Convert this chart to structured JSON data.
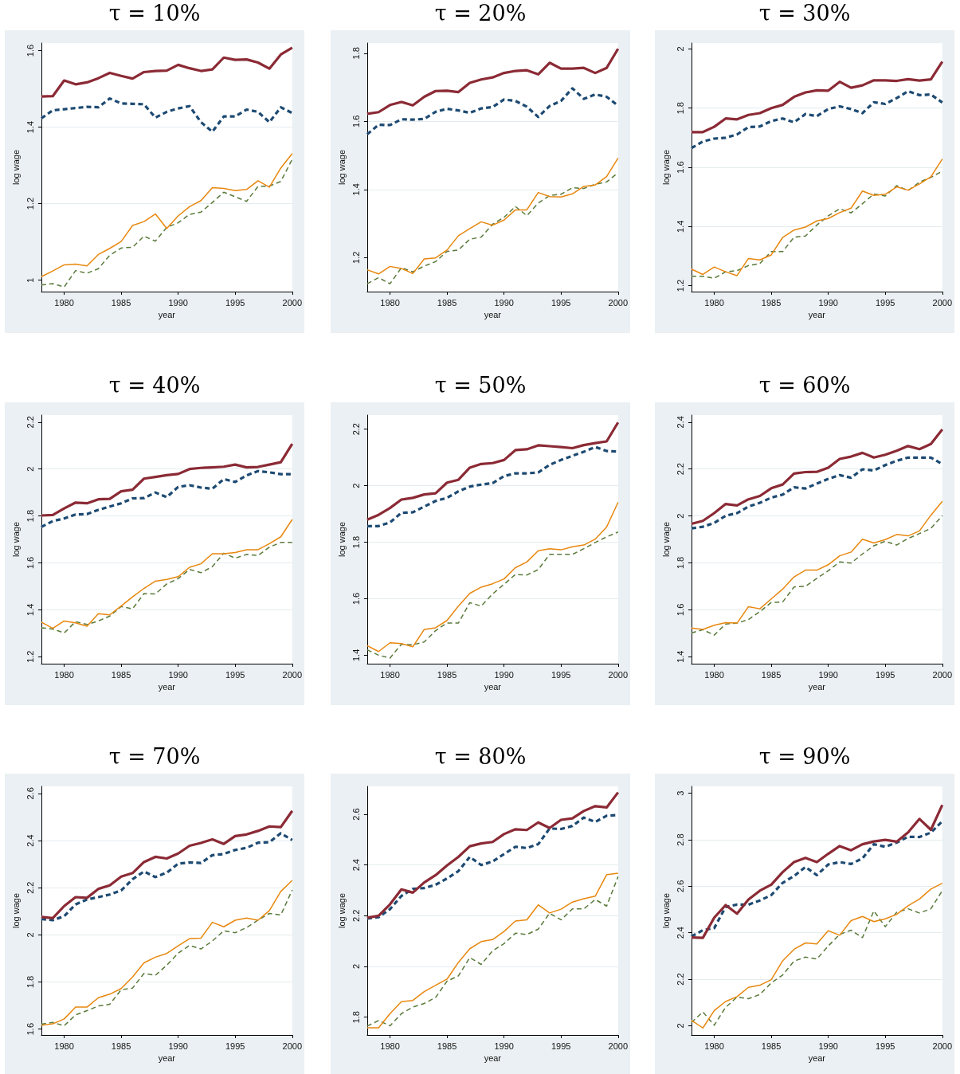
{
  "chart_data": [
    {
      "type": "line",
      "title": "τ = 10%",
      "xlabel": "year",
      "ylabel": "log wage",
      "grid": "y",
      "marker": "none",
      "x": [
        1978,
        1979,
        1980,
        1981,
        1982,
        1983,
        1984,
        1985,
        1986,
        1987,
        1988,
        1989,
        1990,
        1991,
        1992,
        1993,
        1994,
        1995,
        1996,
        1997,
        1998,
        1999,
        2000
      ],
      "xlim": [
        1978,
        2000
      ],
      "xticks": [
        1980,
        1985,
        1990,
        1995,
        2000
      ],
      "ylim": [
        0.97,
        1.62
      ],
      "yticks": [
        {
          "value": 1,
          "label": "1"
        },
        1.2,
        1.4,
        1.6
      ],
      "series": [
        {
          "color": "#8b2a35",
          "line_style": "solid",
          "values": [
            1.48,
            1.481,
            1.522,
            1.512,
            1.517,
            1.528,
            1.542,
            1.534,
            1.527,
            1.544,
            1.547,
            1.548,
            1.563,
            1.554,
            1.547,
            1.551,
            1.582,
            1.576,
            1.577,
            1.569,
            1.553,
            1.59,
            1.608
          ]
        },
        {
          "color": "#1d4a72",
          "line_style": "dashed",
          "values": [
            1.423,
            1.444,
            1.447,
            1.45,
            1.453,
            1.452,
            1.475,
            1.462,
            1.461,
            1.46,
            1.425,
            1.44,
            1.449,
            1.455,
            1.413,
            1.388,
            1.428,
            1.428,
            1.446,
            1.44,
            1.413,
            1.452,
            1.437
          ]
        },
        {
          "color": "#e8870e",
          "line_style": "solid",
          "values": [
            1.009,
            1.024,
            1.04,
            1.042,
            1.037,
            1.067,
            1.083,
            1.101,
            1.143,
            1.153,
            1.173,
            1.135,
            1.168,
            1.192,
            1.208,
            1.242,
            1.24,
            1.234,
            1.237,
            1.26,
            1.243,
            1.293,
            1.331
          ]
        },
        {
          "color": "#5a7a3a",
          "line_style": "dashed",
          "values": [
            0.987,
            0.991,
            0.982,
            1.025,
            1.018,
            1.03,
            1.065,
            1.084,
            1.086,
            1.115,
            1.102,
            1.138,
            1.15,
            1.172,
            1.178,
            1.203,
            1.23,
            1.218,
            1.206,
            1.245,
            1.246,
            1.258,
            1.316
          ]
        }
      ]
    },
    {
      "type": "line",
      "title": "τ = 20%",
      "xlabel": "year",
      "ylabel": "log wage",
      "grid": "y",
      "marker": "none",
      "x": [
        1978,
        1979,
        1980,
        1981,
        1982,
        1983,
        1984,
        1985,
        1986,
        1987,
        1988,
        1989,
        1990,
        1991,
        1992,
        1993,
        1994,
        1995,
        1996,
        1997,
        1998,
        1999,
        2000
      ],
      "xlim": [
        1978,
        2000
      ],
      "xticks": [
        1980,
        1985,
        1990,
        1995,
        2000
      ],
      "ylim": [
        1.1,
        1.83
      ],
      "yticks": [
        1.2,
        1.4,
        1.6,
        1.8
      ],
      "series": [
        {
          "color": "#8b2a35",
          "line_style": "solid",
          "values": [
            1.622,
            1.627,
            1.648,
            1.657,
            1.647,
            1.672,
            1.689,
            1.69,
            1.686,
            1.713,
            1.723,
            1.729,
            1.742,
            1.748,
            1.75,
            1.738,
            1.772,
            1.755,
            1.755,
            1.757,
            1.742,
            1.757,
            1.813
          ]
        },
        {
          "color": "#1d4a72",
          "line_style": "dashed",
          "values": [
            1.562,
            1.59,
            1.589,
            1.606,
            1.605,
            1.607,
            1.628,
            1.637,
            1.632,
            1.625,
            1.638,
            1.642,
            1.664,
            1.66,
            1.643,
            1.613,
            1.645,
            1.66,
            1.697,
            1.666,
            1.679,
            1.672,
            1.646
          ]
        },
        {
          "color": "#e8870e",
          "line_style": "solid",
          "values": [
            1.164,
            1.152,
            1.174,
            1.168,
            1.153,
            1.196,
            1.199,
            1.222,
            1.264,
            1.285,
            1.305,
            1.295,
            1.31,
            1.34,
            1.34,
            1.391,
            1.379,
            1.378,
            1.387,
            1.409,
            1.413,
            1.438,
            1.492
          ]
        },
        {
          "color": "#5a7a3a",
          "line_style": "dashed",
          "values": [
            1.123,
            1.141,
            1.123,
            1.17,
            1.158,
            1.175,
            1.188,
            1.218,
            1.222,
            1.254,
            1.26,
            1.298,
            1.318,
            1.35,
            1.323,
            1.36,
            1.382,
            1.386,
            1.405,
            1.403,
            1.415,
            1.422,
            1.449
          ]
        }
      ]
    },
    {
      "type": "line",
      "title": "τ = 30%",
      "xlabel": "year",
      "ylabel": "log wage",
      "grid": "y",
      "marker": "none",
      "x": [
        1978,
        1979,
        1980,
        1981,
        1982,
        1983,
        1984,
        1985,
        1986,
        1987,
        1988,
        1989,
        1990,
        1991,
        1992,
        1993,
        1994,
        1995,
        1996,
        1997,
        1998,
        1999,
        2000
      ],
      "xlim": [
        1978,
        2000
      ],
      "xticks": [
        1980,
        1985,
        1990,
        1995,
        2000
      ],
      "ylim": [
        1.18,
        2.02
      ],
      "yticks": [
        1.2,
        1.4,
        1.6,
        1.8,
        2
      ],
      "series": [
        {
          "color": "#8b2a35",
          "line_style": "solid",
          "values": [
            1.719,
            1.719,
            1.737,
            1.765,
            1.762,
            1.777,
            1.783,
            1.8,
            1.811,
            1.838,
            1.853,
            1.86,
            1.859,
            1.889,
            1.869,
            1.877,
            1.894,
            1.894,
            1.892,
            1.898,
            1.893,
            1.897,
            1.957
          ]
        },
        {
          "color": "#1d4a72",
          "line_style": "dashed",
          "values": [
            1.665,
            1.687,
            1.697,
            1.7,
            1.711,
            1.736,
            1.738,
            1.756,
            1.765,
            1.752,
            1.78,
            1.773,
            1.797,
            1.806,
            1.797,
            1.783,
            1.82,
            1.814,
            1.834,
            1.857,
            1.844,
            1.846,
            1.819
          ]
        },
        {
          "color": "#e8870e",
          "line_style": "solid",
          "values": [
            1.256,
            1.238,
            1.263,
            1.247,
            1.234,
            1.292,
            1.287,
            1.304,
            1.363,
            1.388,
            1.398,
            1.419,
            1.427,
            1.447,
            1.462,
            1.52,
            1.505,
            1.509,
            1.534,
            1.523,
            1.544,
            1.568,
            1.628
          ]
        },
        {
          "color": "#5a7a3a",
          "line_style": "dashed",
          "values": [
            1.232,
            1.232,
            1.225,
            1.247,
            1.251,
            1.268,
            1.275,
            1.315,
            1.315,
            1.364,
            1.368,
            1.405,
            1.436,
            1.46,
            1.446,
            1.477,
            1.51,
            1.503,
            1.538,
            1.521,
            1.55,
            1.566,
            1.587
          ]
        }
      ]
    },
    {
      "type": "line",
      "title": "τ = 40%",
      "xlabel": "year",
      "ylabel": "log wage",
      "grid": "y",
      "marker": "none",
      "x": [
        1978,
        1979,
        1980,
        1981,
        1982,
        1983,
        1984,
        1985,
        1986,
        1987,
        1988,
        1989,
        1990,
        1991,
        1992,
        1993,
        1994,
        1995,
        1996,
        1997,
        1998,
        1999,
        2000
      ],
      "xlim": [
        1978,
        2000
      ],
      "xticks": [
        1980,
        1985,
        1990,
        1995,
        2000
      ],
      "ylim": [
        1.17,
        2.23
      ],
      "yticks": [
        1.2,
        1.4,
        1.6,
        1.8,
        2,
        2.2
      ],
      "series": [
        {
          "color": "#8b2a35",
          "line_style": "solid",
          "values": [
            1.802,
            1.804,
            1.832,
            1.857,
            1.854,
            1.871,
            1.873,
            1.905,
            1.912,
            1.959,
            1.966,
            1.974,
            1.979,
            2.0,
            2.005,
            2.007,
            2.01,
            2.019,
            2.007,
            2.009,
            2.019,
            2.029,
            2.107
          ]
        },
        {
          "color": "#1d4a72",
          "line_style": "dashed",
          "values": [
            1.753,
            1.778,
            1.789,
            1.806,
            1.808,
            1.826,
            1.84,
            1.854,
            1.875,
            1.876,
            1.9,
            1.88,
            1.924,
            1.931,
            1.921,
            1.916,
            1.957,
            1.945,
            1.973,
            1.991,
            1.986,
            1.978,
            1.978
          ]
        },
        {
          "color": "#e8870e",
          "line_style": "solid",
          "values": [
            1.347,
            1.321,
            1.352,
            1.344,
            1.33,
            1.383,
            1.378,
            1.416,
            1.455,
            1.491,
            1.522,
            1.529,
            1.541,
            1.581,
            1.596,
            1.639,
            1.639,
            1.644,
            1.656,
            1.656,
            1.682,
            1.711,
            1.785
          ]
        },
        {
          "color": "#5a7a3a",
          "line_style": "dashed",
          "values": [
            1.323,
            1.318,
            1.301,
            1.349,
            1.337,
            1.352,
            1.373,
            1.414,
            1.404,
            1.469,
            1.467,
            1.51,
            1.533,
            1.572,
            1.558,
            1.584,
            1.641,
            1.62,
            1.636,
            1.631,
            1.667,
            1.687,
            1.687
          ]
        }
      ]
    },
    {
      "type": "line",
      "title": "τ = 50%",
      "xlabel": "year",
      "ylabel": "log wage",
      "grid": "y",
      "marker": "none",
      "x": [
        1978,
        1979,
        1980,
        1981,
        1982,
        1983,
        1984,
        1985,
        1986,
        1987,
        1988,
        1989,
        1990,
        1991,
        1992,
        1993,
        1994,
        1995,
        1996,
        1997,
        1998,
        1999,
        2000
      ],
      "xlim": [
        1978,
        2000
      ],
      "xticks": [
        1980,
        1985,
        1990,
        1995,
        2000
      ],
      "ylim": [
        1.37,
        2.25
      ],
      "yticks": [
        1.4,
        1.6,
        1.8,
        2,
        2.2
      ],
      "series": [
        {
          "color": "#8b2a35",
          "line_style": "solid",
          "values": [
            1.88,
            1.897,
            1.921,
            1.951,
            1.957,
            1.969,
            1.973,
            2.011,
            2.021,
            2.064,
            2.077,
            2.08,
            2.091,
            2.126,
            2.129,
            2.143,
            2.14,
            2.137,
            2.133,
            2.144,
            2.151,
            2.157,
            2.224
          ]
        },
        {
          "color": "#1d4a72",
          "line_style": "dashed",
          "values": [
            1.857,
            1.857,
            1.87,
            1.904,
            1.906,
            1.926,
            1.946,
            1.957,
            1.98,
            1.997,
            2.004,
            2.009,
            2.034,
            2.044,
            2.044,
            2.047,
            2.074,
            2.091,
            2.106,
            2.12,
            2.137,
            2.123,
            2.121
          ]
        },
        {
          "color": "#e8870e",
          "line_style": "solid",
          "values": [
            1.434,
            1.413,
            1.444,
            1.441,
            1.43,
            1.491,
            1.497,
            1.523,
            1.574,
            1.619,
            1.641,
            1.653,
            1.67,
            1.71,
            1.73,
            1.77,
            1.777,
            1.773,
            1.784,
            1.79,
            1.811,
            1.854,
            1.941
          ]
        },
        {
          "color": "#5a7a3a",
          "line_style": "dashed",
          "values": [
            1.419,
            1.4,
            1.39,
            1.439,
            1.437,
            1.447,
            1.487,
            1.514,
            1.514,
            1.586,
            1.574,
            1.617,
            1.651,
            1.686,
            1.684,
            1.703,
            1.757,
            1.757,
            1.757,
            1.777,
            1.799,
            1.819,
            1.836
          ]
        }
      ]
    },
    {
      "type": "line",
      "title": "τ = 60%",
      "xlabel": "year",
      "ylabel": "log wage",
      "grid": "y",
      "marker": "none",
      "x": [
        1978,
        1979,
        1980,
        1981,
        1982,
        1983,
        1984,
        1985,
        1986,
        1987,
        1988,
        1989,
        1990,
        1991,
        1992,
        1993,
        1994,
        1995,
        1996,
        1997,
        1998,
        1999,
        2000
      ],
      "xlim": [
        1978,
        2000
      ],
      "xticks": [
        1980,
        1985,
        1990,
        1995,
        2000
      ],
      "ylim": [
        1.37,
        2.43
      ],
      "yticks": [
        1.4,
        1.6,
        1.8,
        2,
        2.2,
        2.4
      ],
      "series": [
        {
          "color": "#8b2a35",
          "line_style": "solid",
          "values": [
            1.966,
            1.979,
            2.012,
            2.051,
            2.045,
            2.071,
            2.085,
            2.118,
            2.134,
            2.181,
            2.187,
            2.188,
            2.206,
            2.243,
            2.253,
            2.269,
            2.249,
            2.261,
            2.278,
            2.298,
            2.285,
            2.307,
            2.369
          ]
        },
        {
          "color": "#1d4a72",
          "line_style": "dashed",
          "values": [
            1.947,
            1.954,
            1.97,
            2.001,
            2.012,
            2.04,
            2.056,
            2.078,
            2.091,
            2.122,
            2.117,
            2.138,
            2.158,
            2.174,
            2.163,
            2.199,
            2.194,
            2.217,
            2.235,
            2.249,
            2.249,
            2.249,
            2.221
          ]
        },
        {
          "color": "#e8870e",
          "line_style": "solid",
          "values": [
            1.522,
            1.516,
            1.534,
            1.545,
            1.543,
            1.613,
            1.604,
            1.646,
            1.688,
            1.74,
            1.769,
            1.769,
            1.792,
            1.83,
            1.846,
            1.901,
            1.885,
            1.899,
            1.921,
            1.915,
            1.936,
            2.003,
            2.062
          ]
        },
        {
          "color": "#5a7a3a",
          "line_style": "dashed",
          "values": [
            1.501,
            1.515,
            1.492,
            1.539,
            1.543,
            1.558,
            1.592,
            1.631,
            1.633,
            1.697,
            1.7,
            1.734,
            1.766,
            1.804,
            1.799,
            1.838,
            1.873,
            1.892,
            1.876,
            1.904,
            1.925,
            1.947,
            2.001
          ]
        }
      ]
    },
    {
      "type": "line",
      "title": "τ = 70%",
      "xlabel": "year",
      "ylabel": "log wage",
      "grid": "y",
      "marker": "none",
      "x": [
        1978,
        1979,
        1980,
        1981,
        1982,
        1983,
        1984,
        1985,
        1986,
        1987,
        1988,
        1989,
        1990,
        1991,
        1992,
        1993,
        1994,
        1995,
        1996,
        1997,
        1998,
        1999,
        2000
      ],
      "xlim": [
        1978,
        2000
      ],
      "xticks": [
        1980,
        1985,
        1990,
        1995,
        2000
      ],
      "ylim": [
        1.575,
        2.63
      ],
      "yticks": [
        1.6,
        1.8,
        2,
        2.2,
        2.4,
        2.6
      ],
      "series": [
        {
          "color": "#8b2a35",
          "line_style": "solid",
          "values": [
            2.076,
            2.071,
            2.122,
            2.16,
            2.157,
            2.195,
            2.21,
            2.247,
            2.262,
            2.309,
            2.331,
            2.324,
            2.345,
            2.378,
            2.39,
            2.405,
            2.386,
            2.419,
            2.426,
            2.441,
            2.46,
            2.457,
            2.526
          ]
        },
        {
          "color": "#1d4a72",
          "line_style": "dashed",
          "values": [
            2.067,
            2.062,
            2.079,
            2.129,
            2.15,
            2.16,
            2.171,
            2.188,
            2.236,
            2.269,
            2.245,
            2.264,
            2.302,
            2.307,
            2.305,
            2.338,
            2.343,
            2.36,
            2.369,
            2.391,
            2.393,
            2.431,
            2.402
          ]
        },
        {
          "color": "#e8870e",
          "line_style": "solid",
          "values": [
            1.616,
            1.622,
            1.643,
            1.693,
            1.693,
            1.733,
            1.748,
            1.772,
            1.821,
            1.881,
            1.905,
            1.921,
            1.953,
            1.984,
            1.986,
            2.053,
            2.034,
            2.062,
            2.071,
            2.062,
            2.103,
            2.184,
            2.231
          ]
        },
        {
          "color": "#5a7a3a",
          "line_style": "dashed",
          "values": [
            1.621,
            1.628,
            1.614,
            1.66,
            1.678,
            1.698,
            1.705,
            1.767,
            1.774,
            1.836,
            1.828,
            1.871,
            1.922,
            1.955,
            1.94,
            1.974,
            2.017,
            2.009,
            2.031,
            2.062,
            2.091,
            2.084,
            2.19
          ]
        }
      ]
    },
    {
      "type": "line",
      "title": "τ = 80%",
      "xlabel": "year",
      "ylabel": "log wage",
      "grid": "y",
      "marker": "none",
      "x": [
        1978,
        1979,
        1980,
        1981,
        1982,
        1983,
        1984,
        1985,
        1986,
        1987,
        1988,
        1989,
        1990,
        1991,
        1992,
        1993,
        1994,
        1995,
        1996,
        1997,
        1998,
        1999,
        2000
      ],
      "xlim": [
        1978,
        2000
      ],
      "xticks": [
        1980,
        1985,
        1990,
        1995,
        2000
      ],
      "ylim": [
        1.73,
        2.71
      ],
      "yticks": [
        1.8,
        2,
        2.2,
        2.4,
        2.6
      ],
      "series": [
        {
          "color": "#8b2a35",
          "line_style": "solid",
          "values": [
            2.192,
            2.2,
            2.245,
            2.304,
            2.291,
            2.331,
            2.36,
            2.398,
            2.432,
            2.474,
            2.485,
            2.491,
            2.522,
            2.541,
            2.538,
            2.568,
            2.546,
            2.578,
            2.584,
            2.613,
            2.632,
            2.627,
            2.686
          ]
        },
        {
          "color": "#1d4a72",
          "line_style": "dashed",
          "values": [
            2.189,
            2.194,
            2.226,
            2.278,
            2.306,
            2.309,
            2.322,
            2.347,
            2.376,
            2.432,
            2.4,
            2.414,
            2.443,
            2.472,
            2.467,
            2.482,
            2.544,
            2.542,
            2.554,
            2.587,
            2.57,
            2.594,
            2.597
          ]
        },
        {
          "color": "#e8870e",
          "line_style": "solid",
          "values": [
            1.758,
            1.758,
            1.814,
            1.861,
            1.866,
            1.901,
            1.926,
            1.95,
            2.016,
            2.07,
            2.098,
            2.106,
            2.138,
            2.179,
            2.184,
            2.243,
            2.211,
            2.226,
            2.254,
            2.267,
            2.277,
            2.362,
            2.368
          ]
        },
        {
          "color": "#5a7a3a",
          "line_style": "dashed",
          "values": [
            1.765,
            1.787,
            1.766,
            1.814,
            1.84,
            1.854,
            1.878,
            1.942,
            1.963,
            2.035,
            2.008,
            2.062,
            2.09,
            2.131,
            2.126,
            2.147,
            2.21,
            2.184,
            2.227,
            2.227,
            2.264,
            2.238,
            2.354
          ]
        }
      ]
    },
    {
      "type": "line",
      "title": "τ = 90%",
      "xlabel": "year",
      "ylabel": "log wage",
      "grid": "y",
      "marker": "none",
      "x": [
        1978,
        1979,
        1980,
        1981,
        1982,
        1983,
        1984,
        1985,
        1986,
        1987,
        1988,
        1989,
        1990,
        1991,
        1992,
        1993,
        1994,
        1995,
        1996,
        1997,
        1998,
        1999,
        2000
      ],
      "xlim": [
        1978,
        2000
      ],
      "xticks": [
        1980,
        1985,
        1990,
        1995,
        2000
      ],
      "ylim": [
        1.96,
        3.03
      ],
      "yticks": [
        2,
        2.2,
        2.4,
        2.6,
        2.8,
        3
      ],
      "series": [
        {
          "color": "#8b2a35",
          "line_style": "solid",
          "values": [
            2.38,
            2.378,
            2.465,
            2.519,
            2.482,
            2.543,
            2.581,
            2.607,
            2.661,
            2.704,
            2.722,
            2.704,
            2.74,
            2.773,
            2.755,
            2.781,
            2.793,
            2.8,
            2.792,
            2.832,
            2.89,
            2.843,
            2.95
          ]
        },
        {
          "color": "#1d4a72",
          "line_style": "dashed",
          "values": [
            2.384,
            2.411,
            2.42,
            2.511,
            2.521,
            2.521,
            2.539,
            2.562,
            2.615,
            2.644,
            2.683,
            2.648,
            2.694,
            2.704,
            2.696,
            2.72,
            2.781,
            2.77,
            2.788,
            2.813,
            2.812,
            2.831,
            2.88
          ]
        },
        {
          "color": "#e8870e",
          "line_style": "solid",
          "values": [
            2.023,
            1.99,
            2.065,
            2.104,
            2.125,
            2.165,
            2.174,
            2.198,
            2.279,
            2.329,
            2.356,
            2.352,
            2.409,
            2.389,
            2.452,
            2.47,
            2.448,
            2.46,
            2.479,
            2.516,
            2.545,
            2.588,
            2.613
          ]
        },
        {
          "color": "#5a7a3a",
          "line_style": "dashed",
          "values": [
            2.014,
            2.059,
            2.002,
            2.079,
            2.123,
            2.116,
            2.134,
            2.184,
            2.218,
            2.278,
            2.295,
            2.287,
            2.343,
            2.393,
            2.411,
            2.379,
            2.494,
            2.426,
            2.488,
            2.503,
            2.485,
            2.503,
            2.581
          ]
        }
      ]
    }
  ]
}
